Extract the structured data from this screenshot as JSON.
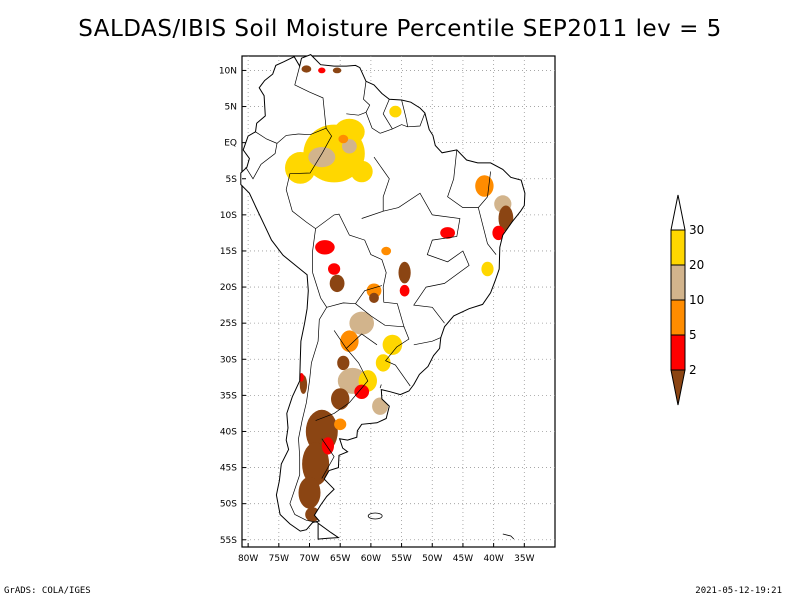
{
  "title": "SALDAS/IBIS Soil Moisture Percentile SEP2011 lev = 5",
  "map": {
    "lon_range": [
      -81,
      -30
    ],
    "lat_range": [
      -56,
      12
    ],
    "lat_ticks": [
      {
        "value": 10,
        "label": "10N"
      },
      {
        "value": 5,
        "label": "5N"
      },
      {
        "value": 0,
        "label": "EQ"
      },
      {
        "value": -5,
        "label": "5S"
      },
      {
        "value": -10,
        "label": "10S"
      },
      {
        "value": -15,
        "label": "15S"
      },
      {
        "value": -20,
        "label": "20S"
      },
      {
        "value": -25,
        "label": "25S"
      },
      {
        "value": -30,
        "label": "30S"
      },
      {
        "value": -35,
        "label": "35S"
      },
      {
        "value": -40,
        "label": "40S"
      },
      {
        "value": -45,
        "label": "45S"
      },
      {
        "value": -50,
        "label": "50S"
      },
      {
        "value": -55,
        "label": "55S"
      }
    ],
    "lon_ticks": [
      {
        "value": -80,
        "label": "80W"
      },
      {
        "value": -75,
        "label": "75W"
      },
      {
        "value": -70,
        "label": "70W"
      },
      {
        "value": -65,
        "label": "65W"
      },
      {
        "value": -60,
        "label": "60W"
      },
      {
        "value": -55,
        "label": "55W"
      },
      {
        "value": -50,
        "label": "50W"
      },
      {
        "value": -45,
        "label": "45W"
      },
      {
        "value": -40,
        "label": "40W"
      },
      {
        "value": -35,
        "label": "35W"
      }
    ],
    "grid": true
  },
  "legend": {
    "levels": [
      {
        "label": "30",
        "color": "#ffffff"
      },
      {
        "label": "20",
        "color": "#ffd700"
      },
      {
        "label": "10",
        "color": "#d2b48c"
      },
      {
        "label": "5",
        "color": "#ff8c00"
      },
      {
        "label": "2",
        "color": "#ff0000"
      },
      {
        "label": "",
        "color": "#8b4513"
      }
    ]
  },
  "colors": {
    "percentile_2": "#8b4513",
    "percentile_5": "#ff0000",
    "percentile_10": "#ff8c00",
    "percentile_20": "#d2b48c",
    "percentile_30": "#ffd700"
  },
  "footer": {
    "left": "GrADS: COLA/IGES",
    "right": "2021-05-12-19:21"
  }
}
